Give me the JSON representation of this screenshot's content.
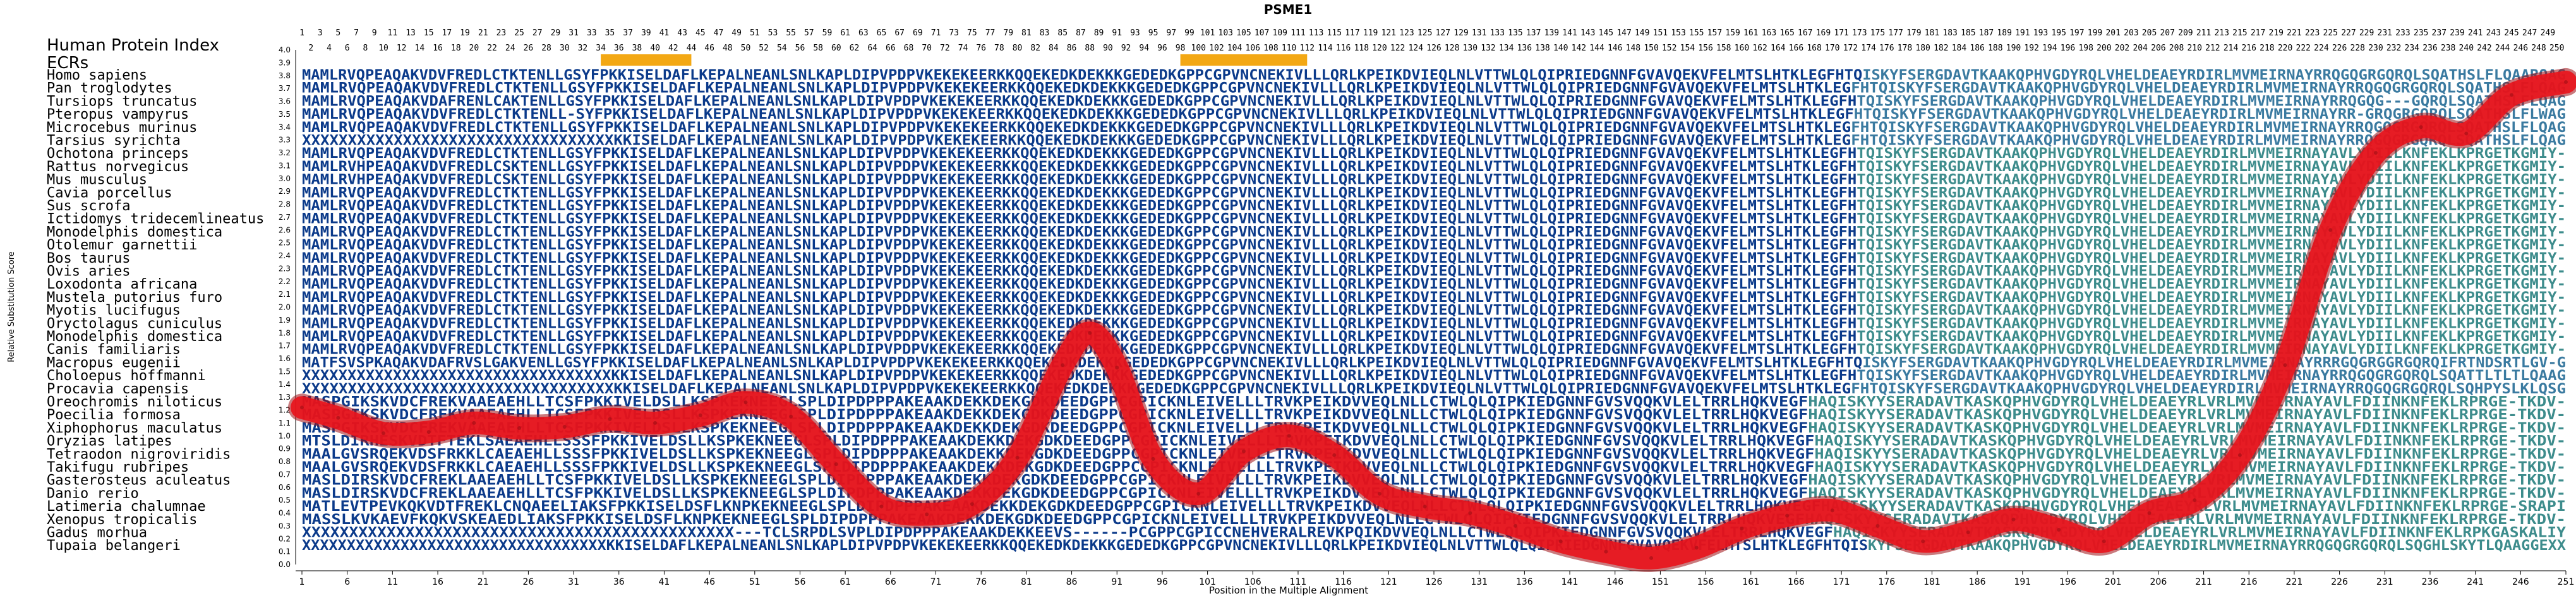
{
  "title": "PSME1",
  "xlabel": "Position in the Multiple Alignment",
  "ylabel": "Relative Substitution Score",
  "header_label": "Human Protein Index",
  "ecr_label": "ECRs",
  "colors": {
    "curve": "#e8141c",
    "curve_edge": "#9e0e14",
    "ecr_bar": "#f3a814",
    "ecr_highlight": "#f6d66a",
    "seq_dark": "#0b3a8a",
    "seq_light": "#3a7aa0",
    "seq_teal": "#3d8c8c"
  },
  "species": [
    "Homo sapiens",
    "Pan troglodytes",
    "Tursiops truncatus",
    "Pteropus vampyrus",
    "Microcebus murinus",
    "Tarsius syrichta",
    "Ochotona princeps",
    "Rattus norvegicus",
    "Mus musculus",
    "Cavia porcellus",
    "Sus scrofa",
    "Ictidomys tridecemlineatus",
    "Monodelphis domestica",
    "Otolemur garnettii",
    "Bos taurus",
    "Ovis aries",
    "Loxodonta africana",
    "Mustela putorius furo",
    "Myotis lucifugus",
    "Oryctolagus cuniculus",
    "Monodelphis domestica",
    "Canis familiaris",
    "Macropus eugenii",
    "Choloepus hoffmanni",
    "Procavia capensis",
    "Oreochromis niloticus",
    "Poecilia formosa",
    "Xiphophorus maculatus",
    "Oryzias latipes",
    "Tetraodon nigroviridis",
    "Takifugu rubripes",
    "Gasterosteus aculeatus",
    "Danio rerio",
    "Latimeria chalumnae",
    "Xenopus tropicalis",
    "Gadus morhua",
    "Tupaia belangeri"
  ],
  "sequences": [
    "MAMLRVQPEAQAKVDVFREDLCTKTENLLGSYFPKKISELDAFLKEPALNEANLSNLKAPLDIPVPDPVKEKEKEERKKQQEKEDKDEKKKGEDEDKGPPCGPVNCNEKIVLLLQRLKPEIKDVIEQLNLVTTWLQLQIPRIEDGNNFGVAVQEKVFELMTSLHTKLEGFHTQISKYFSERGDAVTKAAKQPHVGDYRQLVHELDEAEYRDIRLMVMEIRNAYRRQGQGRGQRQLSQATHSLFLQAARQAG",
    "MAMLRVQPEAQAKVDVFREDLCTKTENLLGSYFPKKISELDAFLKEPALNEANLSNLKAPLDIPVPDPVKEKEKEERKKQQEKEDKDEKKKGEDEDKGPPCGPVNCNEKIVLLLQRLKPEIKDVIEQLNLVTTWLQLQIPRIEDGNNFGVAVQEKVFELMTSLHTKLEGFHTQISKYFSERGDAVTKAAKQPHVGDYRQLVHELDEAEYRDIRLMVMEIRNAYRRQGQGRGQRQLSQATHSLFLQAG",
    "MAMLRVQPEAQAKVDAFRENLCAKTENLLGSYFPKKISELDAFLKEPALNEANLSNLKAPLDIPVPDPVKEKEKEERKKQQEKEDKDEKKKGEDEDKGPPCGPVNCNEKIVLLLQRLKPEIKDVIEQLNLVTTWLQLQIPRIEDGNNFGVAVQEKVFELMTSLHTKLEGFHTQISKYFSERGDAVTKAAKQPHVGDYRQLVHELDEAEYRDIRLMVMEIRNAYRRQGQG---GQRQLSQATHSLFLQAG",
    "MAMLRVQPEAQAKVDVFREDLCTKTENLL-SYFPKKISELDAFLKEPALNEANLSNLKAPLDIPVPDPVKEKEKEERKKQQEKEDKDEKKKGEDEDKGPPCGPVNCNEKIVLLLQRLKPEIKDVIEQLNLVTTWLQLQIPRIEDGNNFGVAVQEKVFELMTSLHTKLEGFHTQISKYFSERGDAVTKAAKQPHVGDYRQLVHELDEAEYRDIRLMVMEIRNAYRR-GRQGRGQRQLSQATHSLFLWAG",
    "MAMLRVQPEAQAKVDVFREDLCTKTENLLGSYFPKKISELDAFLKEPALNEANLSNLKAPLDIPVPDPVKEKEKEERKKQQEKEDKDEKKKGEDEDKGPPCGPVNCNEKIVLLLQRLKPEIKDVIEQLNLVTTWLQLQIPRIEDGNNFGVAVQEKVFELMTSLHTKLEGFHTQISKYFSERGDAVTKAAKQPHVGDYRQLVHELDEAEYRDIRLMVMEIRNAYRRQGQGRGQRQLSQATHSLFLQAG",
    "XXXXXXXXXXXXXXXXXXXXXXXXXXXXXXXXXXKKISELDAFLKEPALNEANLSNLKAPLDIPVPDPVKEKEKEERKKQQEKEDKDEKKKGEDEDKGPPCGPVNCNEKIVLLLQRLKPEIKDVIEQLNLVTTWLQLQIPRIEDGNNFGVAVQEKVFELMTSLHTKLEGFHTQISKYFSERGDAVTKAAKQPHVGDYRQLVHELDEAEYRDIRLMVMEIRNAYRRQGQGRGQRQLSQATHSLFLQAG",
    "MAMLRVQPEAQAKVDVFREDLCTKTENLLGSYFPKKISELDAFLKEPALNEANLSNLKAPLDIPVPDPVKEKEKEERKKQQEKEDKDEKKKGEDEDKGPPCGPVNCNEKIVLLLQRLKPEIKDVIEQLNLVTTWLQLQIPRIEDGNNFGVAVQEKVFELMTSLHTKLEGFHTQISKYFSERGDAVTKAAKQPHVGDYRQLVHELDEAEYRDIRLMVMEIRNAYAVLYDIILKNFEKLKPRGETKGMIY-",
    "MAMLRVHPEAQAKVDVFREDLCSKTENLLGSYFPKKISELDAFLKEPALNEANLSNLKAPLDIPVPDPVKEKEKEERKKQQEKEDKDEKKKGEDEDKGPPCGPVNCNEKIVLLLQRLKPEIKDVIEQLNLVTTWLQLQIPRIEDGNNFGVAVQEKVFELMTSLHTKLEGFHTQISKYFSERGDAVTKAAKQPHVGDYRQLVHELDEAEYRDIRLMVMEIRNAYAVLYDIILKNFEKLKPRGETKGMIY-",
    "MAMLRVHPEAQAKVDVFREDLCSKTENLLGSYFPKKISELDAFLKEPALNEANLSNLKAPLDIPVPDPVKEKEKEERKKQQEKEDKDEKKKGEDEDKGPPCGPVNCNEKIVLLLQRLKPEIKDVIEQLNLVTTWLQLQIPRIEDGNNFGVAVQEKVFELMTSLHTKLEGFHTQISKYFSERGDAVTKAAKQPHVGDYRQLVHELDEAEYRDIRLMVMEIRNAYAVLYDIILKNFEKLKPRGETKGMIY-",
    "MAMLRVQPEAQAKVDVFREDLCTKTENLLGSYFPKKISELDAFLKEPALNEANLSNLKAPLDIPVPDPVKEKEKEERKKQQEKEDKDEKKKGEDEDKGPPCGPVNCNEKIVLLLQRLKPEIKDVIEQLNLVTTWLQLQIPRIEDGNNFGVAVQEKVFELMTSLHTKLEGFHTQISKYFSERGDAVTKAAKQPHVGDYRQLVHELDEAEYRDIRLMVMEIRNAYAVLYDIILKNFEKLKPRGETKGMIY-",
    "MAMLRVQPEAQAKVDVFREDLCTKTENLLGSYFPKKISELDAFLKEPALNEANLSNLKAPLDIPVPDPVKEKEKEERKKQQEKEDKDEKKKGEDEDKGPPCGPVNCNEKIVLLLQRLKPEIKDVIEQLNLVTTWLQLQIPRIEDGNNFGVAVQEKVFELMTSLHTKLEGFHTQISKYFSERGDAVTKAAKQPHVGDYRQLVHELDEAEYRDIRLMVMEIRNAYAVLYDIILKNFEKLKPRGETKGMIY-",
    "MAMLRVQPEAQAKVDVFREDLCTKTENLLGSYFPKKISELDAFLKEPALNEANLSNLKAPLDIPVPDPVKEKEKEERKKQQEKEDKDEKKKGEDEDKGPPCGPVNCNEKIVLLLQRLKPEIKDVIEQLNLVTTWLQLQIPRIEDGNNFGVAVQEKVFELMTSLHTKLEGFHTQISKYFSERGDAVTKAAKQPHVGDYRQLVHELDEAEYRDIRLMVMEIRNAYAVLYDIILKNFEKLKPRGETKGMIY-",
    "MAMLRVQPEAQAKVDVFREDLCTKTENLLGSYFPKKISELDAFLKEPALNEANLSNLKAPLDIPVPDPVKEKEKEERKKQQEKEDKDEKKKGEDEDKGPPCGPVNCNEKIVLLLQRLKPEIKDVIEQLNLVTTWLQLQIPRIEDGNNFGVAVQEKVFELMTSLHTKLEGFHTQISKYFSERGDAVTKAAKQPHVGDYRQLVHELDEAEYRDIRLMVMEIRNAYAVLYDIILKNFEKLKPRGETKGMIY-",
    "MAMLRVQPEAQAKVDVFREDLCTKTENLLGSYFPKKISELDAFLKEPALNEANLSNLKAPLDIPVPDPVKEKEKEERKKQQEKEDKDEKKKGEDEDKGPPCGPVNCNEKIVLLLQRLKPEIKDVIEQLNLVTTWLQLQIPRIEDGNNFGVAVQEKVFELMTSLHTKLEGFHTQISKYFSERGDAVTKAAKQPHVGDYRQLVHELDEAEYRDIRLMVMEIRNAYAVLYDIILKNFEKLKPRGETKGMIY-",
    "MAMLRVQPEAQAKVDVFREDLCTKTENLLGSYFPKKISELDAFLKEPALNEANLSNLKAPLDIPVPDPVKEKEKEERKKQQEKEDKDEKKKGEDEDKGPPCGPVNCNEKIVLLLQRLKPEIKDVIEQLNLVTTWLQLQIPRIEDGNNFGVAVQEKVFELMTSLHTKLEGFHTQISKYFSERGDAVTKAAKQPHVGDYRQLVHELDEAEYRDIRLMVMEIRNAYAVLYDIILKNFEKLKPRGETKGMIY-",
    "MAMLRVQPEAQAKVDVFREDLCTKTENLLGSYFPKKISELDAFLKEPALNEANLSNLKAPLDIPVPDPVKEKEKEERKKQQEKEDKDEKKKGEDEDKGPPCGPVNCNEKIVLLLQRLKPEIKDVIEQLNLVTTWLQLQIPRIEDGNNFGVAVQEKVFELMTSLHTKLEGFHTQISKYFSERGDAVTKAAKQPHVGDYRQLVHELDEAEYRDIRLMVMEIRNAYAVLYDIILKNFEKLKPRGETKGMIY-",
    "MAMLRVQPEAQAKVDVFREDLCTKTENLLGSYFPKKISELDAFLKEPALNEANLSNLKAPLDIPVPDPVKEKEKEERKKQQEKEDKDEKKKGEDEDKGPPCGPVNCNEKIVLLLQRLKPEIKDVIEQLNLVTTWLQLQIPRIEDGNNFGVAVQEKVFELMTSLHTKLEGFHTQISKYFSERGDAVTKAAKQPHVGDYRQLVHELDEAEYRDIRLMVMEIRNAYAVLYDIILKNFEKLKPRGETKGMIY-",
    "MAMLRVQPEAQAKVDVFREDLCTKTENLLGSYFPKKISELDAFLKEPALNEANLSNLKAPLDIPVPDPVKEKEKEERKKQQEKEDKDEKKKGEDEDKGPPCGPVNCNEKIVLLLQRLKPEIKDVIEQLNLVTTWLQLQIPRIEDGNNFGVAVQEKVFELMTSLHTKLEGFHTQISKYFSERGDAVTKAAKQPHVGDYRQLVHELDEAEYRDIRLMVMEIRNAYAVLYDIILKNFEKLKPRGETKGMIY-",
    "MAMLRVQPEAQAKVDVFREDLCTKTENLLGSYFPKKISELDAFLKEPALNEANLSNLKAPLDIPVPDPVKEKEKEERKKQQEKEDKDEKKKGEDEDKGPPCGPVNCNEKIVLLLQRLKPEIKDVIEQLNLVTTWLQLQIPRIEDGNNFGVAVQEKVFELMTSLHTKLEGFHTQISKYFSERGDAVTKAAKQPHVGDYRQLVHELDEAEYRDIRLMVMEIRNAYAVLYDIILKNFEKLKPRGETKGMIY-",
    "MAMLRVQPEAQAKVDVFREDLCTKTENLLGSYFPKKISELDAFLKEPALNEANLSNLKAPLDIPVPDPVKEKEKEERKKQQEKEDKDEKKKGEDEDKGPPCGPVNCNEKIVLLLQRLKPEIKDVIEQLNLVTTWLQLQIPRIEDGNNFGVAVQEKVFELMTSLHTKLEGFHTQISKYFSERGDAVTKAAKQPHVGDYRQLVHELDEAEYRDIRLMVMEIRNAYAVLYDIILKNFEKLKPRGETKGMIY-",
    "MAMLRVQPEAQAKVDVFREDLCTKTENLLGSYFPKKISELDAFLKEPALNEANLSNLKAPLDIPVPDPVKEKEKEERKKQQEKEDKDEKKKGEDEDKGPPCGPVNCNEKIVLLLQRLKPEIKDVIEQLNLVTTWLQLQIPRIEDGNNFGVAVQEKVFELMTSLHTKLEGFHTQISKYFSERGDAVTKAAKQPHVGDYRQLVHELDEAEYRDIRLMVMEIRNAYAVLYDIILKNFEKLKPRGETKGMIY-",
    "MAMLRVQPEAQAKVDVFREDLCTKTENLLGSYFPKKISELDAFLKEPALNEANLSNLKAPLDIPVPDPVKEKEKEERKKQQEKEDKDEKKKGEDEDKGPPCGPVNCNEKIVLLLQRLKPEIKDVIEQLNLVTTWLQLQIPRIEDGNNFGVAVQEKVFELMTSLHTKLEGFHTQISKYFSERGDAVTKAAKQPHVGDYRQLVHELDEAEYRDIRLMVMEIRNAYAVLYDIILKNFEKLKPRGETKGMIY-",
    "MATFSVSPKAQAKVDAFRVSLGAKVENLLGSYFPKKISELDAFLKEPALNEANLSNLKAPLDIPVPDPVKEKEKEERKKQQEKEDKDEKKKGEDEDKGPPCGPVNCNEKIVLLLQRLKPEIKDVIEQLNLVTTWLQLQIPRIEDGNNFGVAVQEKVFELMTSLHTKLEGFHTQISKYFSERGDAVTKAAKQPHVGDYRQLVHELDEAEYRDIRLMVMEIRNAYRRRGQGRGGRGQRQIFRTNDSRTLGV-G",
    "XXXXXXXXXXXXXXXXXXXXXXXXXXXXXXXXXXKKISELDAFLKEPALNEANLSNLKAPLDIPVPDPVKEKEKEERKKQQEKEDKDEKKKGEDEDKGPPCGPVNCNEKIVLLLQRLKPEIKDVIEQLNLVTTWLQLQIPRIEDGNNFGVAVQEKVFELMTSLHTKLEGFHTQISKYFSERGDAVTKAAKQPHVGDYRQLVHELDEAEYRDIRLMVMEIRNAYRRQGQGRGQRQLSQATTLTLTLQAAG",
    "XXXXXXXXXXXXXXXXXXXXXXXXXXXXXXXXXXKKISELDAFLKEPALNEANLSNLKAPLDIPVPDPVKEKEKEERKKQQEKEDKDEKKKGEDEDKGPPCGPVNCNEKIVLLLQRLKPEIKDVIEQLNLVTTWLQLQIPRIEDGNNFGVAVQEKVFELMTSLHTKLEGFHTQISKYFSERGDAVTKAAKQPHVGDYRQLVHELDEAEYRDIRLMVMEIRNAYRRQGQGRGQRQLSQHPYSLKLQSG",
    "MASPGIKSKVDCFREKVAAEAEHLLTCSFPKKIVELDSLLKSPKEKNEEGLSPLDIPDPPPAKEAAKDEKKDEKGDKDEEDGPPCGPICKNLEIVELLLTRVKPEIKDVVEQLNLLCTWLQLQIPKIEDGNNFGVSVQQKVLELTRRLHQKVEGFHAQISKYYSERADAVTKASKQPHVGDYRQLVHELDEAEYRLVRLMVMEIRNAYAVLFDIINKNFEKLRPRGE-TKDV-",
    "MASPGIKSKVDCFREKVAAEAEHLLTCSFPKKIVELDSLLKSPKEKNEEGLSPLDIPDPPPAKEAAKDEKKDEKGDKDEEDGPPCGPICKNLEIVELLLTRVKPEIKDVVEQLNLLCTWLQLQIPKIEDGNNFGVSVQQKVLELTRRLHQKVEGFHAQISKYYSERADAVTKASKQPHVGDYRQLVHELDEAEYRLVRLMVMEIRNAYAVLFDIINKNFEKLRPRGE-TKDV-",
    "MASPGIKSKVDCFREKVAAEAEHLLTCSFPKKIVELDSLLKSPKEKNEEGLSPLDIPDPPPAKEAAKDEKKDEKGDKDEEDGPPCGPICKNLEIVELLLTRVKPEIKDVVEQLNLLCTWLQLQIPKIEDGNNFGVSVQQKVLELTRRLHQKVEGFHAQISKYYSERADAVTKASKQPHVGDYRQLVHELDEAEYRLVRLMVMEIRNAYAVLFDIINKNFEKLRPRGE-TKDV-",
    "MTSLDIRHESKVDTFTEKLSAEAEHLLSSSFPKKIVELDSLLKSPKEKNEEGLSPLDIPDPPPAKEAAKDEKKDEKGDKDEEDGPPCGPICKNLEIVELLLTRVKPEIKDVVEQLNLLCTWLQLQIPKIEDGNNFGVSVQQKVLELTRRLHQKVEGFHAQISKYYSERADAVTKASKQPHVGDYRQLVHELDEAEYRLVRLMVMEIRNAYAVLFDIINKNFEKLRPRGE-TKDV-",
    "MAALGVSRQEKVDSFRKKLCAEAEHLLSSSFPKKIVELDSLLKSPKEKNEEGLSPLDIPDPPPAKEAAKDEKKDEKGDKDEEDGPPCGPICKNLEIVELLLTRVKPEIKDVVEQLNLLCTWLQLQIPKIEDGNNFGVSVQQKVLELTRRLHQKVEGFHAQISKYYSERADAVTKASKQPHVGDYRQLVHELDEAEYRLVRLMVMEIRNAYAVLFDIINKNFEKLRPRGE-TKDV-",
    "MAALGVSRQEKVDSFRKKLCAEAEHLLSSSFPKKIVELDSLLKSPKEKNEEGLSPLDIPDPPPAKEAAKDEKKDEKGDKDEEDGPPCGPICKNLEIVELLLTRVKPEIKDVVEQLNLLCTWLQLQIPKIEDGNNFGVSVQQKVLELTRRLHQKVEGFHAQISKYYSERADAVTKASKQPHVGDYRQLVHELDEAEYRLVRLMVMEIRNAYAVLFDIINKNFEKLRPRGE-TKDV-",
    "MASLDIRSKVDCFREKLAAEAEHLLTCSFPKKIVELDSLLKSPKEKNEEGLSPLDIPDPPPAKEAAKDEKKDEKGDKDEEDGPPCGPICKNLEIVELLLTRVKPEIKDVVEQLNLLCTWLQLQIPKIEDGNNFGVSVQQKVLELTRRLHQKVEGFHAQISKYYSERADAVTKASKQPHVGDYRQLVHELDEAEYRLVRLMVMEIRNAYAVLFDIINKNFEKLRPRGE-TKDV-",
    "MASLDIRSKVDCFREKLAAEAEHLLTCSFPKKIVELDSLLKSPKEKNEEGLSPLDIPDPPPAKEAAKDEKKDEKGDKDEEDGPPCGPICKNLEIVELLLTRVKPEIKDVVEQLNLLCTWLQLQIPKIEDGNNFGVSVQQKVLELTRRLHQKVEGFHAQISKYYSERADAVTKASKQPHVGDYRQLVHELDEAEYRLVRLMVMEIRNAYAVLFDIINKNFEKLRPRGE-TKDV-",
    "MATLEVTPEVKQKVDTFREKLCNQAEELIAKSFPKKISELDSFLKNPKEKNEEGLSPLDIPDPPPAKEAAKDEKKDEKGDKDEEDGPPCGPICKNLEIVELLLTRVKPEIKDVVEQLNLLCTWLQLQIPKIEDGNNFGVSVQQKVLELTRRLHQKVEGFHAQISKYYSERADAVTKASKQPHVGDYRQLVHELDEAEYRLVRLMVMEIRNAYAVLFDIINKNFEKLRPRGE-SRAPI",
    "MASSLKVKAEVFKQKVSKEAEDLIAKSFPKKISELDSFLKNPKEKNEEGLSPLDIPDPPPAKEAAKDEKKDEKGDKDEEDGPPCGPICKNLEIVELLLTRVKPEIKDVVEQLNLLCTWLQLQIPKIEDGNNFGVSVQQKVLELTRRLHQKVEGFHAQISKYYSERADAVTKASKQPHVGDYRQLVHELDEAEYRLVRLMVMEIRNAYAVLFDIINKNFEKLRPRGE-TKDV-",
    "XXXXXXXXXXXXXXXXXXXXXXXXXXXXXXXXXXXXXXXXXXXXXX---TCLSRPDLSVPLDIPDPPPAKEAAKDEKKEEVS------PCGPPCGPICCNEHVERALREVKPQIKDVVEQLNLLCTWLQLQIPKIEDGNNFGVSVQQKVLELTRRLHQKVEGFHAQISKYYSERADAVTKASKQPHVGDYRQLVHELDEAEYRLVRLMVMEIRNAYAVLFDIINKNFEKLRPKGASKALIY",
    "XXXXXXXXXXXXXXXXXXXXXXXXXXXXXXXXXXKKISELDAFLKEPALNEANLSNLKAPLDIPVPDPVKEKEKEERKKQQEKEDKDEKKKGEDEDKGPPCGPVNCNEKIVLLLQRLKPEIKDVIEQLNLVTTWLQLQIPRIEDGNNFGVAVQEKVFELMTSLHTKLEGFHTQISKYFSERGDAVTKAAKQPHVGDYRQLVHELDEAEYRDIRLMVMEIRNAYRRQGQGRGQRQLSQGHLSKYTLQAAGGEXX"
  ],
  "chart_data": {
    "type": "line",
    "title": "PSME1",
    "xlabel": "Position in the Multiple Alignment",
    "ylabel": "Relative Substitution Score",
    "xlim": [
      1,
      251
    ],
    "ylim": [
      0,
      4.0
    ],
    "x_ticks": [
      1,
      6,
      11,
      16,
      21,
      26,
      31,
      36,
      41,
      46,
      51,
      56,
      61,
      66,
      71,
      76,
      81,
      86,
      91,
      96,
      101,
      106,
      111,
      116,
      121,
      126,
      131,
      136,
      141,
      146,
      151,
      156,
      161,
      166,
      171,
      176,
      181,
      186,
      191,
      196,
      201,
      206,
      211,
      216,
      221,
      226,
      231,
      236,
      241,
      246,
      251
    ],
    "y_ticks": [
      "0.0",
      "0.1",
      "0.2",
      "0.3",
      "0.4",
      "0.5",
      "0.6",
      "0.7",
      "0.8",
      "0.9",
      "1.0",
      "1.1",
      "1.2",
      "1.3",
      "1.4",
      "1.5",
      "1.6",
      "1.7",
      "1.8",
      "1.9",
      "2.0",
      "2.1",
      "2.2",
      "2.3",
      "2.4",
      "2.5",
      "2.6",
      "2.7",
      "2.8",
      "2.9",
      "3.0",
      "3.1",
      "3.2",
      "3.3",
      "3.4",
      "3.5",
      "3.6",
      "3.7",
      "3.8",
      "3.9",
      "4.0"
    ],
    "ecr_ranges": [
      [
        34,
        44
      ],
      [
        98,
        112
      ]
    ],
    "series": [
      {
        "x": [
          1,
          5,
          10,
          15,
          20,
          25,
          30,
          35,
          40,
          45,
          50,
          55,
          60,
          65,
          70,
          75,
          80,
          85,
          88,
          91,
          95,
          100,
          105,
          110,
          115,
          120,
          125,
          130,
          135,
          140,
          145,
          150,
          155,
          160,
          165,
          170,
          175,
          180,
          185,
          190,
          195,
          200,
          205,
          210,
          215,
          220,
          225,
          230,
          235,
          240,
          245,
          251
        ],
        "y": [
          1.22,
          1.14,
          1.02,
          1.03,
          1.1,
          1.06,
          1.07,
          1.13,
          1.1,
          1.16,
          1.26,
          1.15,
          0.78,
          0.45,
          0.39,
          0.47,
          0.83,
          1.55,
          1.8,
          1.53,
          0.82,
          0.55,
          0.88,
          1.0,
          0.85,
          0.55,
          0.45,
          0.4,
          0.3,
          0.18,
          0.1,
          0.05,
          0.13,
          0.28,
          0.38,
          0.42,
          0.3,
          0.18,
          0.25,
          0.35,
          0.27,
          0.18,
          0.4,
          0.5,
          0.85,
          1.55,
          2.6,
          3.2,
          3.4,
          3.35,
          3.65,
          3.75
        ]
      }
    ]
  },
  "header_numbers_top": [
    1,
    3,
    5,
    7,
    9,
    11,
    13,
    15,
    17,
    19,
    21,
    23,
    25,
    27,
    29,
    31,
    33,
    35,
    37,
    39,
    41,
    43,
    45,
    47,
    49,
    51,
    53,
    55,
    57,
    59,
    61,
    63,
    65,
    67,
    69,
    71,
    73,
    75,
    77,
    79,
    81,
    83,
    85,
    87,
    89,
    91,
    93,
    95,
    97,
    99,
    101,
    103,
    105,
    107,
    109,
    111,
    113,
    115,
    117,
    119,
    121,
    123,
    125,
    127,
    129,
    131,
    133,
    135,
    137,
    139,
    141,
    143,
    145,
    147,
    149,
    151,
    153,
    155,
    157,
    159,
    161,
    163,
    165,
    167,
    169,
    171,
    173,
    175,
    177,
    179,
    181,
    183,
    185,
    187,
    189,
    191,
    193,
    195,
    197,
    199,
    201,
    203,
    205,
    207,
    209,
    211,
    213,
    215,
    217,
    219,
    221,
    223,
    225,
    227,
    229,
    231,
    233,
    235,
    237,
    239,
    241,
    243,
    245,
    247,
    249
  ],
  "header_numbers_bottom": [
    2,
    4,
    6,
    8,
    10,
    12,
    14,
    16,
    18,
    20,
    22,
    24,
    26,
    28,
    30,
    32,
    34,
    36,
    38,
    40,
    42,
    44,
    46,
    48,
    50,
    52,
    54,
    56,
    58,
    60,
    62,
    64,
    66,
    68,
    70,
    72,
    74,
    76,
    78,
    80,
    82,
    84,
    86,
    88,
    90,
    92,
    94,
    96,
    98,
    100,
    102,
    104,
    106,
    108,
    110,
    112,
    114,
    116,
    118,
    120,
    122,
    124,
    126,
    128,
    130,
    132,
    134,
    136,
    138,
    140,
    142,
    144,
    146,
    148,
    150,
    152,
    154,
    156,
    158,
    160,
    162,
    164,
    166,
    168,
    170,
    172,
    174,
    176,
    178,
    180,
    182,
    184,
    186,
    188,
    190,
    192,
    194,
    196,
    198,
    200,
    202,
    204,
    206,
    208,
    210,
    212,
    214,
    216,
    218,
    220,
    222,
    224,
    226,
    228,
    230,
    232,
    234,
    236,
    238,
    240,
    242,
    244,
    246,
    248,
    250
  ]
}
